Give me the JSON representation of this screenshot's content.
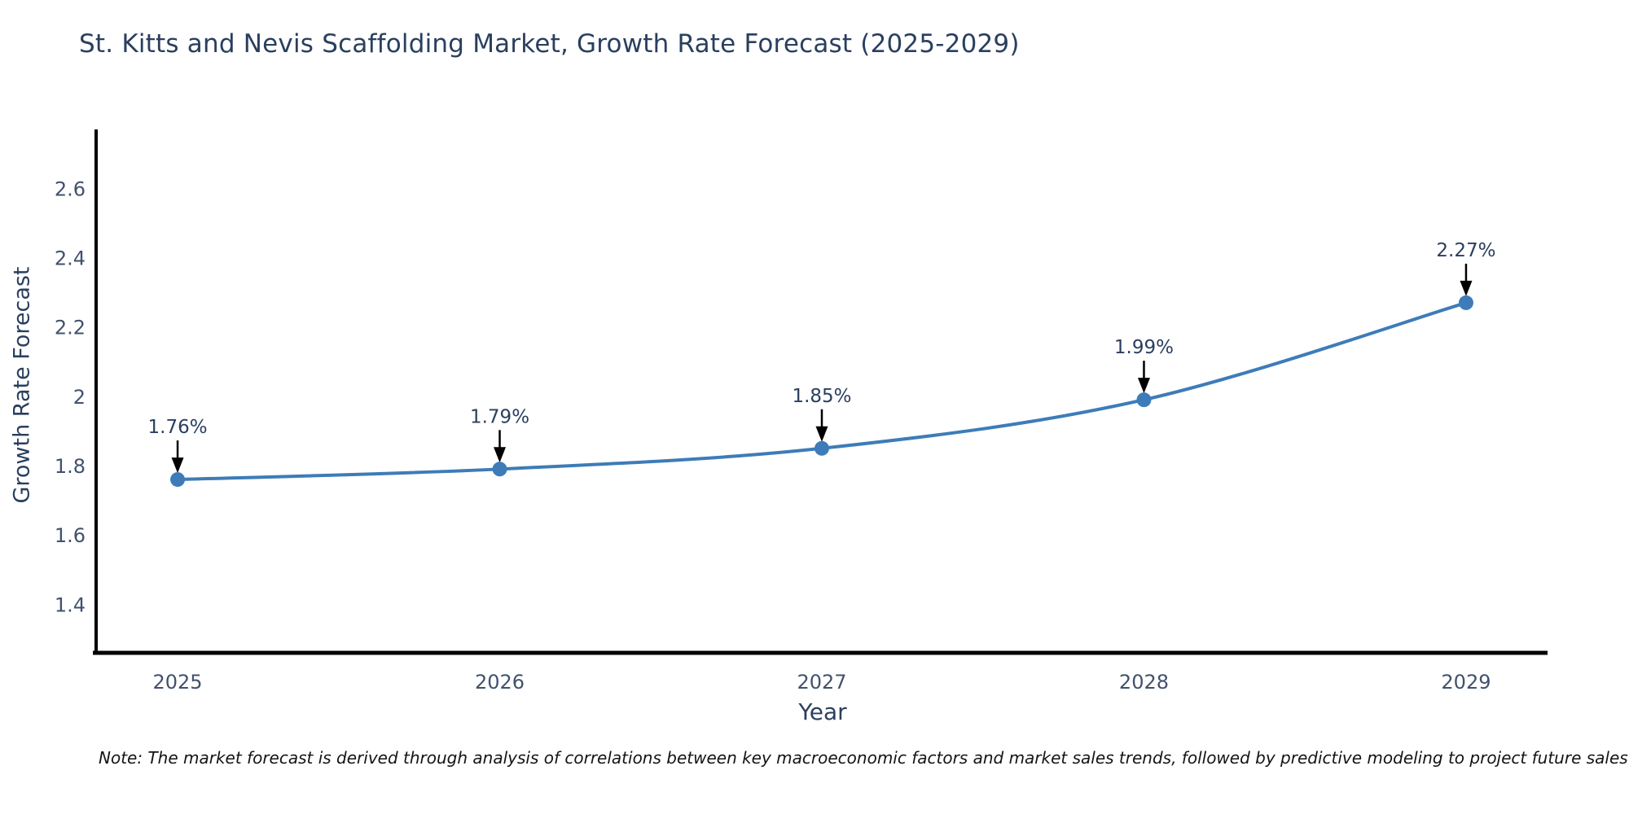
{
  "chart_data": {
    "type": "line",
    "title": "St. Kitts and Nevis Scaffolding Market, Growth Rate Forecast (2025-2029)",
    "xlabel": "Year",
    "ylabel": "Growth Rate Forecast",
    "x": [
      2025,
      2026,
      2027,
      2028,
      2029
    ],
    "categories": [
      "2025",
      "2026",
      "2027",
      "2028",
      "2029"
    ],
    "series": [
      {
        "name": "Growth Rate Forecast",
        "values": [
          1.76,
          1.79,
          1.85,
          1.99,
          2.27
        ],
        "point_labels": [
          "1.76%",
          "1.79%",
          "1.85%",
          "1.99%",
          "2.27%"
        ]
      }
    ],
    "yticks": [
      1.4,
      1.6,
      1.8,
      2.0,
      2.2,
      2.4,
      2.6
    ],
    "ytick_labels": [
      "1.4",
      "1.6",
      "1.8",
      "2",
      "2.2",
      "2.4",
      "2.6"
    ],
    "xlim": [
      2024.747,
      2029.253
    ],
    "ylim": [
      1.26,
      2.77
    ],
    "grid": false,
    "legend": "none",
    "line_shape": "spline",
    "marker": "circle",
    "annotation_arrows": true,
    "colors": {
      "line": "#3d7cb8",
      "marker": "#3d7cb8",
      "axis_line": "#000000",
      "title_text": "#2a3f5f",
      "axis_title_text": "#2a3f5f",
      "tick_text": "#42516d",
      "annotation_text": "#2a3f5f",
      "annotation_arrow": "#000000",
      "background": "#ffffff"
    }
  },
  "note": {
    "text": "Note: The market forecast is derived through analysis of correlations between key macroeconomic factors and market sales trends, followed by predictive modeling to project future sales"
  }
}
